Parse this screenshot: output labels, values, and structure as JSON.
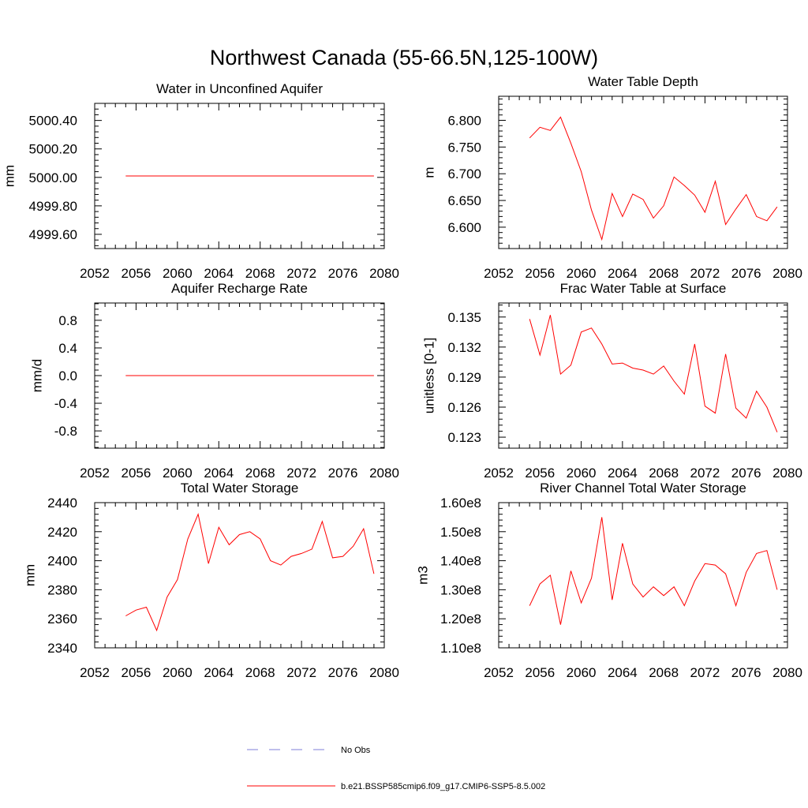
{
  "figure": {
    "title": "Northwest Canada (55-66.5N,125-100W)"
  },
  "chart_data": [
    {
      "type": "line",
      "title": "Water in Unconfined Aquifer",
      "xlabel": "",
      "ylabel": "mm",
      "xlim": [
        2052,
        2080
      ],
      "ylim": [
        4999.5,
        5000.52
      ],
      "xticks": [
        2052,
        2056,
        2060,
        2064,
        2068,
        2072,
        2076,
        2080
      ],
      "yticks": [
        4999.6,
        4999.8,
        5000.0,
        5000.2,
        5000.4
      ],
      "ytick_labels": [
        "4999.60",
        "4999.80",
        "5000.00",
        "5000.20",
        "5000.40"
      ],
      "series": [
        {
          "color": "#ff0000",
          "x": [
            2055,
            2056,
            2057,
            2058,
            2059,
            2060,
            2061,
            2062,
            2063,
            2064,
            2065,
            2066,
            2067,
            2068,
            2069,
            2070,
            2071,
            2072,
            2073,
            2074,
            2075,
            2076,
            2077,
            2078,
            2079
          ],
          "y": [
            5000.01,
            5000.01,
            5000.01,
            5000.01,
            5000.01,
            5000.01,
            5000.01,
            5000.01,
            5000.01,
            5000.01,
            5000.01,
            5000.01,
            5000.01,
            5000.01,
            5000.01,
            5000.01,
            5000.01,
            5000.01,
            5000.01,
            5000.01,
            5000.01,
            5000.01,
            5000.01,
            5000.01,
            5000.01
          ]
        }
      ]
    },
    {
      "type": "line",
      "title": "Water Table Depth",
      "xlabel": "",
      "ylabel": "m",
      "xlim": [
        2052,
        2080
      ],
      "ylim": [
        6.56,
        6.845
      ],
      "xticks": [
        2052,
        2056,
        2060,
        2064,
        2068,
        2072,
        2076,
        2080
      ],
      "yticks": [
        6.6,
        6.65,
        6.7,
        6.75,
        6.8
      ],
      "ytick_labels": [
        "6.600",
        "6.650",
        "6.700",
        "6.750",
        "6.800"
      ],
      "series": [
        {
          "color": "#ff0000",
          "x": [
            2055,
            2056,
            2057,
            2058,
            2059,
            2060,
            2061,
            2062,
            2063,
            2064,
            2065,
            2066,
            2067,
            2068,
            2069,
            2070,
            2071,
            2072,
            2073,
            2074,
            2075,
            2076,
            2077,
            2078,
            2079
          ],
          "y": [
            6.767,
            6.787,
            6.781,
            6.806,
            6.757,
            6.704,
            6.632,
            6.577,
            6.663,
            6.62,
            6.662,
            6.652,
            6.617,
            6.64,
            6.694,
            6.678,
            6.66,
            6.628,
            6.686,
            6.605,
            6.634,
            6.661,
            6.62,
            6.612,
            6.638
          ]
        }
      ]
    },
    {
      "type": "line",
      "title": "Aquifer Recharge Rate",
      "xlabel": "",
      "ylabel": "mm/d",
      "xlim": [
        2052,
        2080
      ],
      "ylim": [
        -1.05,
        1.05
      ],
      "xticks": [
        2052,
        2056,
        2060,
        2064,
        2068,
        2072,
        2076,
        2080
      ],
      "yticks": [
        -0.8,
        -0.4,
        0.0,
        0.4,
        0.8
      ],
      "ytick_labels": [
        "-0.8",
        "-0.4",
        "0.0",
        "0.4",
        "0.8"
      ],
      "series": [
        {
          "color": "#ff0000",
          "x": [
            2055,
            2056,
            2057,
            2058,
            2059,
            2060,
            2061,
            2062,
            2063,
            2064,
            2065,
            2066,
            2067,
            2068,
            2069,
            2070,
            2071,
            2072,
            2073,
            2074,
            2075,
            2076,
            2077,
            2078,
            2079
          ],
          "y": [
            0,
            0,
            0,
            0,
            0,
            0,
            0,
            0,
            0,
            0,
            0,
            0,
            0,
            0,
            0,
            0,
            0,
            0,
            0,
            0,
            0,
            0,
            0,
            0,
            0
          ]
        }
      ]
    },
    {
      "type": "line",
      "title": "Frac Water Table at Surface",
      "xlabel": "",
      "ylabel": "unitless [0-1]",
      "xlim": [
        2052,
        2080
      ],
      "ylim": [
        0.1219,
        0.1364
      ],
      "xticks": [
        2052,
        2056,
        2060,
        2064,
        2068,
        2072,
        2076,
        2080
      ],
      "yticks": [
        0.123,
        0.126,
        0.129,
        0.132,
        0.135
      ],
      "ytick_labels": [
        "0.123",
        "0.126",
        "0.129",
        "0.132",
        "0.135"
      ],
      "series": [
        {
          "color": "#ff0000",
          "x": [
            2055,
            2056,
            2057,
            2058,
            2059,
            2060,
            2061,
            2062,
            2063,
            2064,
            2065,
            2066,
            2067,
            2068,
            2069,
            2070,
            2071,
            2072,
            2073,
            2074,
            2075,
            2076,
            2077,
            2078,
            2079
          ],
          "y": [
            0.1348,
            0.1312,
            0.1352,
            0.1293,
            0.1302,
            0.1335,
            0.1339,
            0.1323,
            0.1303,
            0.1304,
            0.1299,
            0.1297,
            0.1293,
            0.1301,
            0.1286,
            0.1273,
            0.1323,
            0.1261,
            0.1254,
            0.1313,
            0.1259,
            0.1249,
            0.1276,
            0.126,
            0.1235
          ]
        }
      ]
    },
    {
      "type": "line",
      "title": "Total Water Storage",
      "xlabel": "",
      "ylabel": "mm",
      "xlim": [
        2052,
        2080
      ],
      "ylim": [
        2340,
        2440
      ],
      "xticks": [
        2052,
        2056,
        2060,
        2064,
        2068,
        2072,
        2076,
        2080
      ],
      "yticks": [
        2340,
        2360,
        2380,
        2400,
        2420,
        2440
      ],
      "ytick_labels": [
        "2340",
        "2360",
        "2380",
        "2400",
        "2420",
        "2440"
      ],
      "series": [
        {
          "color": "#ff0000",
          "x": [
            2055,
            2056,
            2057,
            2058,
            2059,
            2060,
            2061,
            2062,
            2063,
            2064,
            2065,
            2066,
            2067,
            2068,
            2069,
            2070,
            2071,
            2072,
            2073,
            2074,
            2075,
            2076,
            2077,
            2078,
            2079
          ],
          "y": [
            2362,
            2366,
            2368,
            2352,
            2375,
            2387,
            2415,
            2432,
            2398,
            2423,
            2411,
            2418,
            2420,
            2415,
            2400,
            2397,
            2403,
            2405,
            2408,
            2427,
            2402,
            2403,
            2410,
            2422,
            2391
          ]
        }
      ]
    },
    {
      "type": "line",
      "title": "River Channel Total Water Storage",
      "xlabel": "",
      "ylabel": "m3",
      "xlim": [
        2052,
        2080
      ],
      "ylim": [
        110000000,
        160000000
      ],
      "xticks": [
        2052,
        2056,
        2060,
        2064,
        2068,
        2072,
        2076,
        2080
      ],
      "yticks": [
        110000000,
        120000000,
        130000000,
        140000000,
        150000000,
        160000000
      ],
      "ytick_labels": [
        "1.10e8",
        "1.20e8",
        "1.30e8",
        "1.40e8",
        "1.50e8",
        "1.60e8"
      ],
      "series": [
        {
          "color": "#ff0000",
          "x": [
            2055,
            2056,
            2057,
            2058,
            2059,
            2060,
            2061,
            2062,
            2063,
            2064,
            2065,
            2066,
            2067,
            2068,
            2069,
            2070,
            2071,
            2072,
            2073,
            2074,
            2075,
            2076,
            2077,
            2078,
            2079
          ],
          "y": [
            124500000,
            132000000,
            135000000,
            118000000,
            136500000,
            125500000,
            134000000,
            155000000,
            126500000,
            146000000,
            132000000,
            127500000,
            131000000,
            128000000,
            131000000,
            124500000,
            133000000,
            139000000,
            138500000,
            135500000,
            124500000,
            136000000,
            142500000,
            143500000,
            130000000
          ]
        }
      ]
    }
  ],
  "legend": {
    "items": [
      {
        "label": "No Obs",
        "color": "#7f7fd8",
        "dashed": true
      },
      {
        "label": "b.e21.BSSP585cmip6.f09_g17.CMIP6-SSP5-8.5.002",
        "color": "#ff0000",
        "dashed": false
      }
    ]
  }
}
